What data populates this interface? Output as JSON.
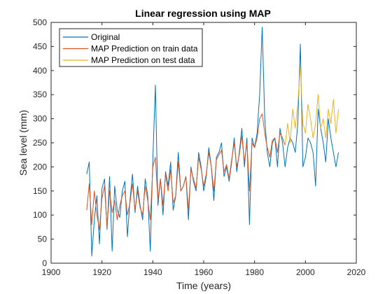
{
  "chart_data": {
    "type": "line",
    "title": "Linear regression using MAP",
    "xlabel": "Time (years)",
    "ylabel": "Sea level (mm)",
    "xlim": [
      1900,
      2020
    ],
    "ylim": [
      0,
      500
    ],
    "xticks": [
      1900,
      1920,
      1940,
      1960,
      1980,
      2000,
      2020
    ],
    "yticks": [
      0,
      50,
      100,
      150,
      200,
      250,
      300,
      350,
      400,
      450,
      500
    ],
    "grid": false,
    "legend_position": "top-left",
    "series": [
      {
        "name": "Original",
        "color": "#0072BD",
        "x": [
          1914,
          1915,
          1916,
          1917,
          1918,
          1919,
          1920,
          1921,
          1922,
          1923,
          1924,
          1925,
          1926,
          1927,
          1928,
          1929,
          1930,
          1931,
          1932,
          1933,
          1934,
          1935,
          1936,
          1937,
          1938,
          1939,
          1940,
          1941,
          1942,
          1943,
          1944,
          1945,
          1946,
          1947,
          1948,
          1949,
          1950,
          1951,
          1952,
          1953,
          1954,
          1955,
          1956,
          1957,
          1958,
          1959,
          1960,
          1961,
          1962,
          1963,
          1964,
          1965,
          1966,
          1967,
          1968,
          1969,
          1970,
          1971,
          1972,
          1973,
          1974,
          1975,
          1976,
          1977,
          1978,
          1979,
          1980,
          1981,
          1982,
          1983,
          1984,
          1985,
          1986,
          1987,
          1988,
          1989,
          1990,
          1991,
          1992,
          1993,
          1994,
          1995,
          1996,
          1997,
          1998,
          1999,
          2000,
          2001,
          2002,
          2003,
          2004,
          2005,
          2006,
          2007,
          2008,
          2009,
          2010,
          2011,
          2012,
          2013
        ],
        "values": [
          185,
          210,
          15,
          90,
          140,
          40,
          155,
          175,
          70,
          180,
          25,
          160,
          110,
          95,
          150,
          170,
          55,
          130,
          185,
          105,
          160,
          120,
          90,
          175,
          140,
          25,
          215,
          370,
          120,
          175,
          100,
          190,
          160,
          210,
          110,
          140,
          230,
          150,
          160,
          180,
          90,
          200,
          170,
          150,
          230,
          200,
          150,
          180,
          240,
          200,
          130,
          220,
          230,
          250,
          180,
          200,
          170,
          210,
          260,
          190,
          230,
          280,
          200,
          260,
          80,
          260,
          240,
          270,
          350,
          490,
          300,
          230,
          200,
          250,
          260,
          200,
          280,
          250,
          200,
          240,
          260,
          250,
          230,
          290,
          455,
          200,
          220,
          260,
          250,
          230,
          160,
          320,
          280,
          250,
          210,
          300,
          260,
          230,
          200,
          230
        ]
      },
      {
        "name": "MAP Prediction on train data",
        "color": "#D95319",
        "x": [
          1914,
          1915,
          1916,
          1917,
          1918,
          1919,
          1920,
          1921,
          1922,
          1923,
          1924,
          1925,
          1926,
          1927,
          1928,
          1929,
          1930,
          1931,
          1932,
          1933,
          1934,
          1935,
          1936,
          1937,
          1938,
          1939,
          1940,
          1941,
          1942,
          1943,
          1944,
          1945,
          1946,
          1947,
          1948,
          1949,
          1950,
          1951,
          1952,
          1953,
          1954,
          1955,
          1956,
          1957,
          1958,
          1959,
          1960,
          1961,
          1962,
          1963,
          1964,
          1965,
          1966,
          1967,
          1968,
          1969,
          1970,
          1971,
          1972,
          1973,
          1974,
          1975,
          1976,
          1977,
          1978,
          1979,
          1980,
          1981,
          1982,
          1983,
          1984,
          1985,
          1986,
          1987,
          1988,
          1989,
          1990,
          1991,
          1992
        ],
        "values": [
          110,
          165,
          80,
          150,
          100,
          70,
          135,
          160,
          75,
          150,
          105,
          130,
          90,
          120,
          140,
          150,
          100,
          125,
          165,
          110,
          150,
          115,
          100,
          160,
          130,
          90,
          200,
          220,
          130,
          175,
          120,
          185,
          150,
          195,
          125,
          140,
          210,
          150,
          160,
          180,
          110,
          195,
          175,
          155,
          220,
          195,
          160,
          185,
          230,
          200,
          150,
          215,
          225,
          235,
          190,
          205,
          175,
          215,
          250,
          200,
          225,
          265,
          210,
          250,
          150,
          250,
          240,
          260,
          300,
          310,
          270,
          240,
          220,
          255,
          260,
          230,
          270,
          260,
          245
        ]
      },
      {
        "name": "MAP Prediction on test data",
        "color": "#EDB120",
        "x": [
          1992,
          1993,
          1994,
          1995,
          1996,
          1997,
          1998,
          1999,
          2000,
          2001,
          2002,
          2003,
          2004,
          2005,
          2006,
          2007,
          2008,
          2009,
          2010,
          2011,
          2012,
          2013
        ],
        "values": [
          245,
          290,
          250,
          320,
          280,
          330,
          410,
          290,
          270,
          330,
          300,
          260,
          290,
          350,
          280,
          300,
          260,
          320,
          290,
          340,
          270,
          320
        ]
      }
    ]
  }
}
